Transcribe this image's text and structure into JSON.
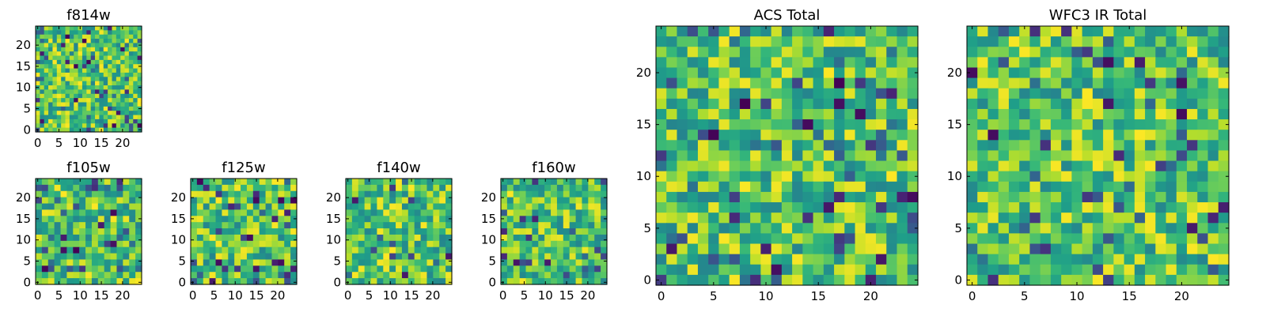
{
  "figure": {
    "colormap": "viridis",
    "background": "#ffffff"
  },
  "chart_data": [
    {
      "type": "heatmap",
      "title": "f814w",
      "x_ticks": [
        0,
        5,
        10,
        15,
        20
      ],
      "y_ticks": [
        0,
        5,
        10,
        15,
        20
      ],
      "xlim": [
        -0.5,
        24.5
      ],
      "ylim": [
        -0.5,
        24.5
      ],
      "grid_size": 25,
      "seed": 11
    },
    {
      "type": "heatmap",
      "title": "f105w",
      "x_ticks": [
        0,
        5,
        10,
        15,
        20
      ],
      "y_ticks": [
        0,
        5,
        10,
        15,
        20
      ],
      "xlim": [
        -0.5,
        24.5
      ],
      "ylim": [
        -0.5,
        24.5
      ],
      "grid_size": 17,
      "seed": 23
    },
    {
      "type": "heatmap",
      "title": "f125w",
      "x_ticks": [
        0,
        5,
        10,
        15,
        20
      ],
      "y_ticks": [
        0,
        5,
        10,
        15,
        20
      ],
      "xlim": [
        -0.5,
        24.5
      ],
      "ylim": [
        -0.5,
        24.5
      ],
      "grid_size": 17,
      "seed": 37
    },
    {
      "type": "heatmap",
      "title": "f140w",
      "x_ticks": [
        0,
        5,
        10,
        15,
        20
      ],
      "y_ticks": [
        0,
        5,
        10,
        15,
        20
      ],
      "xlim": [
        -0.5,
        24.5
      ],
      "ylim": [
        -0.5,
        24.5
      ],
      "grid_size": 17,
      "seed": 41
    },
    {
      "type": "heatmap",
      "title": "f160w",
      "x_ticks": [
        0,
        5,
        10,
        15,
        20
      ],
      "y_ticks": [
        0,
        5,
        10,
        15,
        20
      ],
      "xlim": [
        -0.5,
        24.5
      ],
      "ylim": [
        -0.5,
        24.5
      ],
      "grid_size": 17,
      "seed": 53
    },
    {
      "type": "heatmap",
      "title": "ACS Total",
      "x_ticks": [
        0,
        5,
        10,
        15,
        20
      ],
      "y_ticks": [
        0,
        5,
        10,
        15,
        20
      ],
      "xlim": [
        -0.5,
        24.5
      ],
      "ylim": [
        -0.5,
        24.5
      ],
      "grid_size": 25,
      "seed": 67
    },
    {
      "type": "heatmap",
      "title": "WFC3 IR Total",
      "x_ticks": [
        0,
        5,
        10,
        15,
        20
      ],
      "y_ticks": [
        0,
        5,
        10,
        15,
        20
      ],
      "xlim": [
        -0.5,
        24.5
      ],
      "ylim": [
        -0.5,
        24.5
      ],
      "grid_size": 25,
      "seed": 79
    }
  ]
}
